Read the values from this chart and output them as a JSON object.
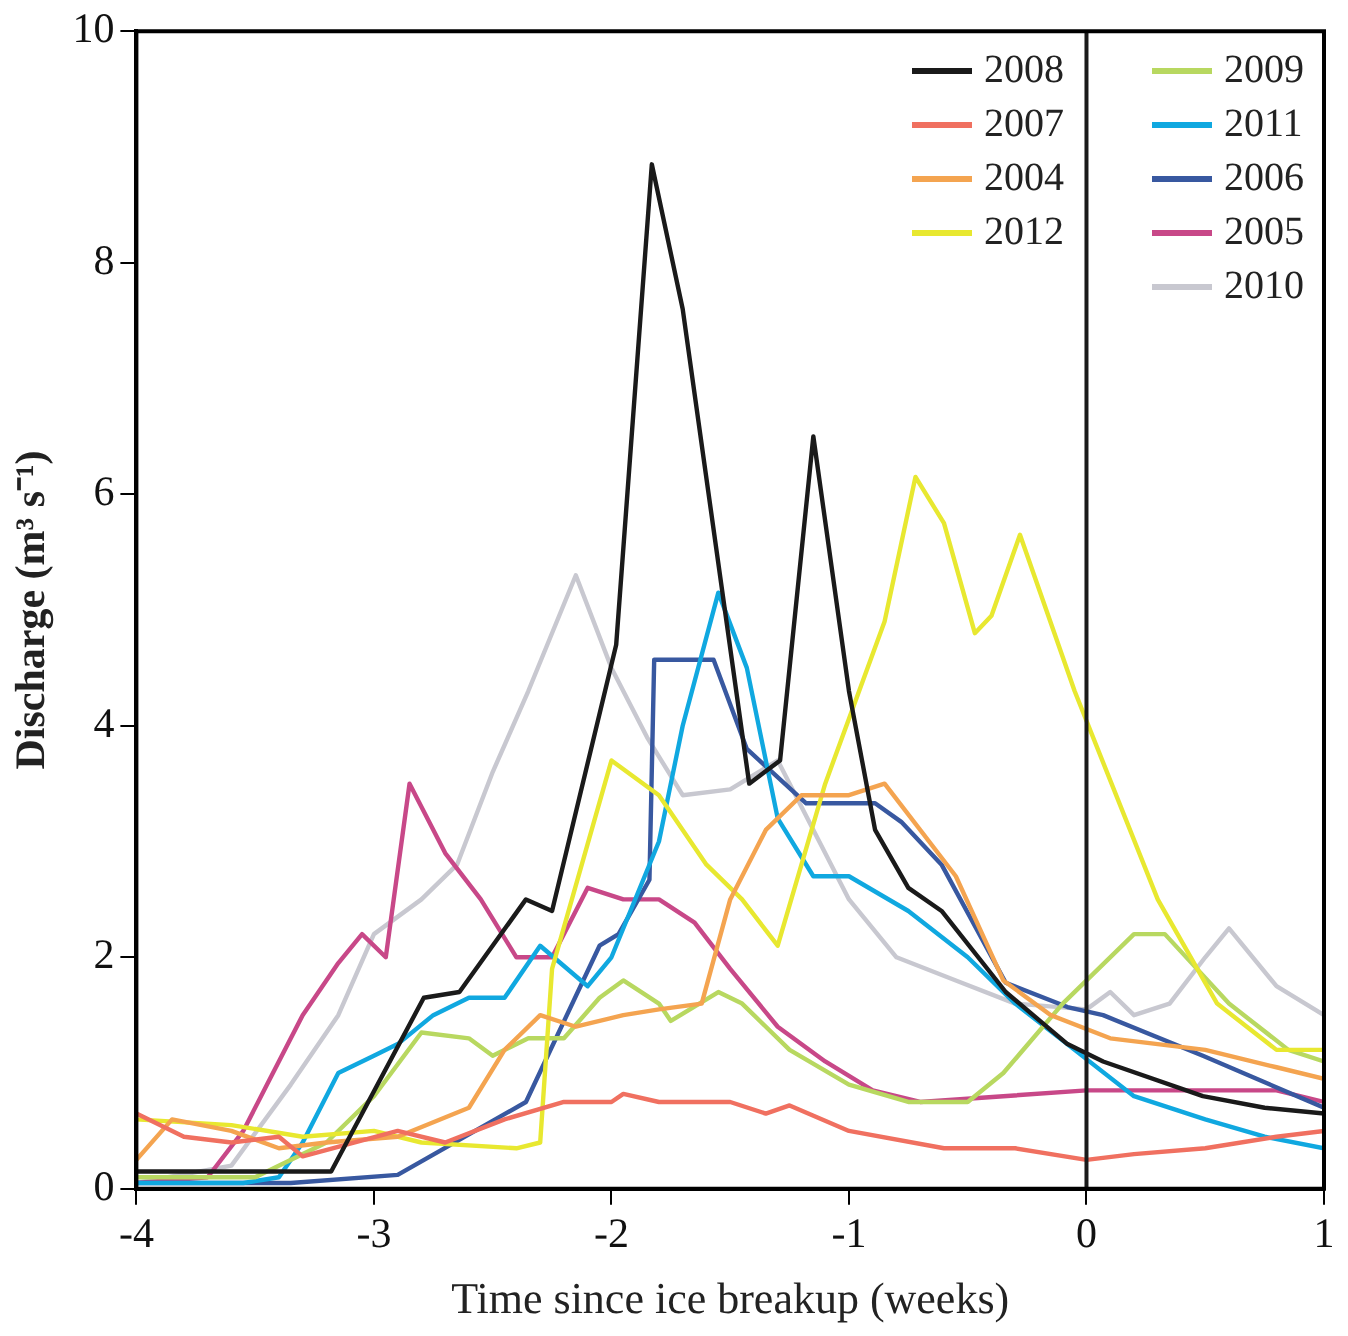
{
  "chart_data": {
    "type": "line",
    "xlabel": "Time since ice breakup (weeks)",
    "ylabel": "Discharge (m³ s⁻¹)",
    "xlim": [
      -4,
      1
    ],
    "xticks": [
      -4,
      -3,
      -2,
      -1,
      0,
      1
    ],
    "ylim": [
      0,
      10
    ],
    "yticks": [
      0,
      2,
      4,
      6,
      8,
      10
    ],
    "grid": false,
    "legend": "top right",
    "marker": "none",
    "line_style": "solid",
    "ref_lines": [
      {
        "axis": "x",
        "value": 0,
        "color": "#1a1a1a"
      }
    ],
    "series": [
      {
        "name": "2008",
        "color": "#1a1a1a",
        "x": [
          -4,
          -3.18,
          -2.79,
          -2.64,
          -2.36,
          -2.25,
          -1.98,
          -1.83,
          -1.7,
          -1.42,
          -1.29,
          -1.15,
          -1.0,
          -0.89,
          -0.75,
          -0.61,
          -0.34,
          -0.08,
          0.07,
          0.49,
          0.75,
          1.0
        ],
        "values": [
          0.15,
          0.15,
          1.65,
          1.7,
          2.5,
          2.4,
          4.7,
          8.85,
          7.6,
          3.5,
          3.7,
          6.5,
          4.3,
          3.1,
          2.6,
          2.4,
          1.7,
          1.25,
          1.1,
          0.8,
          0.7,
          0.65
        ]
      },
      {
        "name": "2007",
        "color": "#f07060",
        "x": [
          -4,
          -3.8,
          -3.6,
          -3.4,
          -3.3,
          -2.9,
          -2.7,
          -2.45,
          -2.2,
          -2,
          -1.95,
          -1.8,
          -1.5,
          -1.35,
          -1.25,
          -1,
          -0.6,
          -0.3,
          0,
          0.2,
          0.5,
          0.8,
          1
        ],
        "values": [
          0.65,
          0.45,
          0.4,
          0.45,
          0.28,
          0.5,
          0.4,
          0.6,
          0.75,
          0.75,
          0.82,
          0.75,
          0.75,
          0.65,
          0.72,
          0.5,
          0.35,
          0.35,
          0.25,
          0.3,
          0.35,
          0.45,
          0.5
        ]
      },
      {
        "name": "2004",
        "color": "#f4a450",
        "x": [
          -4,
          -3.85,
          -3.6,
          -3.4,
          -3.2,
          -2.9,
          -2.6,
          -2.45,
          -2.3,
          -2.15,
          -1.95,
          -1.8,
          -1.62,
          -1.5,
          -1.35,
          -1.2,
          -1,
          -0.85,
          -0.55,
          -0.35,
          -0.15,
          0.1,
          0.5,
          0.8,
          1
        ],
        "values": [
          0.25,
          0.6,
          0.5,
          0.35,
          0.4,
          0.45,
          0.7,
          1.2,
          1.5,
          1.4,
          1.5,
          1.55,
          1.6,
          2.5,
          3.1,
          3.4,
          3.4,
          3.5,
          2.7,
          1.8,
          1.5,
          1.3,
          1.2,
          1.05,
          0.95
        ]
      },
      {
        "name": "2012",
        "color": "#e8e830",
        "x": [
          -4,
          -3.6,
          -3.3,
          -3,
          -2.8,
          -2.4,
          -2.3,
          -2.25,
          -2,
          -1.8,
          -1.6,
          -1.45,
          -1.3,
          -1.1,
          -0.85,
          -0.72,
          -0.6,
          -0.47,
          -0.4,
          -0.28,
          -0.05,
          0.3,
          0.55,
          0.8,
          1
        ],
        "values": [
          0.6,
          0.55,
          0.45,
          0.5,
          0.4,
          0.35,
          0.4,
          1.9,
          3.7,
          3.4,
          2.8,
          2.5,
          2.1,
          3.5,
          4.9,
          6.15,
          5.75,
          4.8,
          4.95,
          5.65,
          4.3,
          2.5,
          1.6,
          1.2,
          1.2
        ]
      },
      {
        "name": "2009",
        "color": "#b8d860",
        "x": [
          -4,
          -3.5,
          -3.2,
          -3,
          -2.8,
          -2.6,
          -2.5,
          -2.35,
          -2.2,
          -2.05,
          -1.95,
          -1.8,
          -1.75,
          -1.55,
          -1.45,
          -1.25,
          -1,
          -0.75,
          -0.5,
          -0.35,
          -0.1,
          0.2,
          0.33,
          0.6,
          0.85,
          1
        ],
        "values": [
          0.1,
          0.1,
          0.4,
          0.8,
          1.35,
          1.3,
          1.15,
          1.3,
          1.3,
          1.65,
          1.8,
          1.6,
          1.45,
          1.7,
          1.6,
          1.2,
          0.9,
          0.75,
          0.75,
          1,
          1.6,
          2.2,
          2.2,
          1.6,
          1.2,
          1.1
        ]
      },
      {
        "name": "2011",
        "color": "#10a8e0",
        "x": [
          -4,
          -3.55,
          -3.4,
          -3.3,
          -3.15,
          -3,
          -2.9,
          -2.75,
          -2.6,
          -2.45,
          -2.3,
          -2.1,
          -2,
          -1.8,
          -1.7,
          -1.55,
          -1.43,
          -1.3,
          -1.15,
          -1,
          -0.75,
          -0.5,
          -0.3,
          -0.05,
          0.2,
          0.5,
          0.75,
          1
        ],
        "values": [
          0.05,
          0.05,
          0.1,
          0.4,
          1,
          1.15,
          1.25,
          1.5,
          1.65,
          1.65,
          2.1,
          1.75,
          2,
          3,
          4,
          5.15,
          4.5,
          3.2,
          2.7,
          2.7,
          2.4,
          2,
          1.6,
          1.2,
          0.8,
          0.6,
          0.45,
          0.35
        ]
      },
      {
        "name": "2006",
        "color": "#3858a0",
        "x": [
          -4,
          -3.35,
          -2.9,
          -2.36,
          -2.05,
          -1.97,
          -1.84,
          -1.82,
          -1.69,
          -1.57,
          -1.43,
          -1.18,
          -0.89,
          -0.78,
          -0.61,
          -0.34,
          -0.08,
          0.07,
          0.49,
          1
        ],
        "values": [
          0.05,
          0.05,
          0.12,
          0.75,
          2.1,
          2.2,
          2.67,
          4.57,
          4.57,
          4.57,
          3.8,
          3.33,
          3.33,
          3.17,
          2.8,
          1.78,
          1.57,
          1.5,
          1.15,
          0.7
        ]
      },
      {
        "name": "2005",
        "color": "#c84888",
        "x": [
          -4,
          -3.7,
          -3.55,
          -3.45,
          -3.3,
          -3.15,
          -3.05,
          -2.95,
          -2.85,
          -2.7,
          -2.55,
          -2.4,
          -2.25,
          -2.1,
          -1.95,
          -1.8,
          -1.65,
          -1.5,
          -1.3,
          -1.1,
          -0.9,
          -0.7,
          -0.35,
          0,
          0.4,
          0.8,
          1
        ],
        "values": [
          0.05,
          0.1,
          0.5,
          0.9,
          1.5,
          1.95,
          2.2,
          2,
          3.5,
          2.9,
          2.5,
          2,
          2,
          2.6,
          2.5,
          2.5,
          2.3,
          1.9,
          1.4,
          1.1,
          0.85,
          0.75,
          0.8,
          0.85,
          0.85,
          0.85,
          0.75
        ]
      },
      {
        "name": "2010",
        "color": "#c8c8d0",
        "x": [
          -4,
          -3.6,
          -3.35,
          -3.15,
          -3,
          -2.8,
          -2.65,
          -2.5,
          -2.35,
          -2.15,
          -2,
          -1.85,
          -1.7,
          -1.5,
          -1.3,
          -1.2,
          -1,
          -0.8,
          -0.55,
          -0.3,
          0,
          0.1,
          0.2,
          0.35,
          0.5,
          0.6,
          0.8,
          1
        ],
        "values": [
          0.05,
          0.2,
          0.9,
          1.5,
          2.2,
          2.5,
          2.8,
          3.6,
          4.3,
          5.3,
          4.5,
          3.9,
          3.4,
          3.45,
          3.7,
          3.3,
          2.5,
          2,
          1.8,
          1.6,
          1.55,
          1.7,
          1.5,
          1.6,
          2,
          2.25,
          1.75,
          1.5
        ]
      }
    ]
  }
}
